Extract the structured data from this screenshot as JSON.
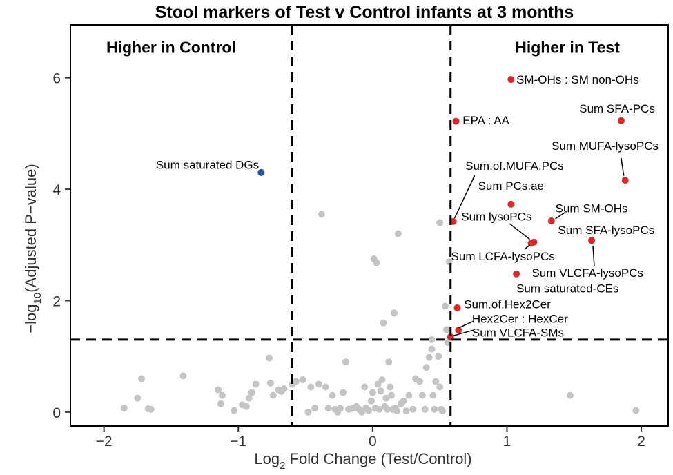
{
  "chart_data": {
    "type": "scatter",
    "title": "Stool markers of Test v Control infants at 3 months",
    "xlabel": {
      "pre": "Log",
      "sub": "2",
      "post": " Fold Change (Test/Control)"
    },
    "ylabel": {
      "pre": "−log",
      "sub": "10",
      "post": "(Adjusted P−value)"
    },
    "xlim": [
      -2.25,
      2.2
    ],
    "ylim": [
      -0.25,
      6.95
    ],
    "xticks": [
      -2,
      -1,
      0,
      1,
      2
    ],
    "xtick_labels": [
      "−2",
      "−1",
      "0",
      "1",
      "2"
    ],
    "yticks": [
      0,
      2,
      4,
      6
    ],
    "ytick_labels": [
      "0",
      "2",
      "4",
      "6"
    ],
    "grid": false,
    "thresholds": {
      "x": [
        -0.6,
        0.58
      ],
      "y": 1.3
    },
    "region_labels": [
      {
        "text": "Higher in Control",
        "x": -1.5,
        "y": 6.55
      },
      {
        "text": "Higher in Test",
        "x": 1.45,
        "y": 6.55
      }
    ],
    "colors": {
      "ns": "#c4c4c4",
      "up": "#e0282c",
      "down": "#2c4fa3",
      "axis": "#000000"
    },
    "series": [
      {
        "group": "up",
        "points": [
          {
            "x": 1.03,
            "y": 5.97,
            "label": "SM-OHs : SM non-OHs",
            "lx": 1.07,
            "ly": 5.97,
            "anchor": "start"
          },
          {
            "x": 1.85,
            "y": 5.23,
            "label": "Sum SFA-PCs",
            "lx": 1.82,
            "ly": 5.45,
            "anchor": "middle"
          },
          {
            "x": 0.62,
            "y": 5.22,
            "label": "EPA : AA",
            "lx": 0.67,
            "ly": 5.24,
            "anchor": "start"
          },
          {
            "x": 1.88,
            "y": 4.16,
            "label": "Sum MUFA-lysoPCs",
            "lx": 1.73,
            "ly": 4.78,
            "anchor": "middle",
            "lead": [
              1.85,
              4.56,
              1.87,
              4.24
            ]
          },
          {
            "x": 1.03,
            "y": 3.73,
            "label": "Sum PCs.ae",
            "lx": 1.03,
            "ly": 4.06,
            "anchor": "middle"
          },
          {
            "x": 1.33,
            "y": 3.43,
            "label": "Sum SM-OHs",
            "lx": 1.63,
            "ly": 3.66,
            "anchor": "middle",
            "lead": [
              1.43,
              3.58,
              1.36,
              3.47
            ]
          },
          {
            "x": 0.6,
            "y": 3.42,
            "label": "Sum.of.MUFA.PCs",
            "lx": 0.69,
            "ly": 4.42,
            "anchor": "start",
            "lead": [
              0.76,
              4.25,
              0.61,
              3.48
            ]
          },
          {
            "x": 1.2,
            "y": 3.05,
            "label": "Sum lysoPCs",
            "lx": 0.66,
            "ly": 3.51,
            "anchor": "start",
            "lead": [
              1.02,
              3.38,
              1.17,
              3.1
            ]
          },
          {
            "x": 1.18,
            "y": 3.03,
            "label": "Sum LCFA-lysoPCs",
            "lx": 0.97,
            "ly": 2.8,
            "anchor": "middle",
            "lead": [
              1.13,
              2.92,
              1.17,
              3.0
            ]
          },
          {
            "x": 1.63,
            "y": 3.08,
            "label": "Sum VLCFA-lysoPCs",
            "lx": 1.6,
            "ly": 2.5,
            "anchor": "middle",
            "lead": [
              1.64,
              2.98,
              1.65,
              2.62
            ]
          },
          {
            "x": 1.07,
            "y": 2.48,
            "label": "Sum saturated-CEs",
            "lx": 1.07,
            "ly": 2.22,
            "anchor": "start"
          },
          {
            "x": 0.63,
            "y": 1.87,
            "label": "Sum.of.Hex2Cer",
            "lx": 0.68,
            "ly": 1.94,
            "anchor": "start"
          },
          {
            "x": 0.64,
            "y": 1.47,
            "label": "Hex2Cer : HexCer",
            "lx": 0.74,
            "ly": 1.68,
            "anchor": "start",
            "lead": [
              0.75,
              1.63,
              0.64,
              1.51
            ]
          },
          {
            "x": 0.58,
            "y": 1.35,
            "label": "Sum VLCFA-SMs",
            "lx": 0.74,
            "ly": 1.43,
            "anchor": "start",
            "lead": [
              0.75,
              1.47,
              0.6,
              1.37
            ]
          }
        ],
        "extra_labels": [
          {
            "label": "Sum SFA-lysoPCs",
            "lx": 1.38,
            "ly": 3.27,
            "anchor": "start"
          }
        ]
      },
      {
        "group": "down",
        "points": [
          {
            "x": -0.83,
            "y": 4.3,
            "label": "Sum saturated DGs",
            "lx": -1.23,
            "ly": 4.44,
            "anchor": "middle"
          }
        ]
      },
      {
        "group": "ns",
        "points": [
          {
            "x": -1.85,
            "y": 0.07
          },
          {
            "x": -1.75,
            "y": 0.25
          },
          {
            "x": -1.72,
            "y": 0.6
          },
          {
            "x": -1.67,
            "y": 0.06
          },
          {
            "x": -1.65,
            "y": 0.05
          },
          {
            "x": -1.41,
            "y": 0.65
          },
          {
            "x": -1.15,
            "y": 0.4
          },
          {
            "x": -1.12,
            "y": 0.3
          },
          {
            "x": -1.13,
            "y": 0.15
          },
          {
            "x": -1.03,
            "y": 0.03
          },
          {
            "x": -0.97,
            "y": 0.13
          },
          {
            "x": -0.94,
            "y": 0.1
          },
          {
            "x": -0.92,
            "y": 0.25
          },
          {
            "x": -0.9,
            "y": 0.35
          },
          {
            "x": -0.87,
            "y": 0.5
          },
          {
            "x": -0.77,
            "y": 0.97
          },
          {
            "x": -0.76,
            "y": 0.52
          },
          {
            "x": -0.74,
            "y": 0.3
          },
          {
            "x": -0.7,
            "y": 0.4
          },
          {
            "x": -0.68,
            "y": 0.37
          },
          {
            "x": -0.66,
            "y": 0.42
          },
          {
            "x": -0.6,
            "y": 0.5
          },
          {
            "x": -0.57,
            "y": 0.55
          },
          {
            "x": -0.52,
            "y": 0.58
          },
          {
            "x": -0.48,
            "y": 0.0
          },
          {
            "x": -0.46,
            "y": 0.45
          },
          {
            "x": -0.43,
            "y": 0.07
          },
          {
            "x": -0.4,
            "y": 0.5
          },
          {
            "x": -0.38,
            "y": 3.55
          },
          {
            "x": -0.35,
            "y": 0.45
          },
          {
            "x": -0.33,
            "y": 0.07
          },
          {
            "x": -0.3,
            "y": 0.3
          },
          {
            "x": -0.28,
            "y": 0.05
          },
          {
            "x": -0.26,
            "y": 0.0
          },
          {
            "x": -0.24,
            "y": 0.07
          },
          {
            "x": -0.22,
            "y": 0.35
          },
          {
            "x": -0.2,
            "y": 0.9
          },
          {
            "x": -0.18,
            "y": 0.05
          },
          {
            "x": -0.16,
            "y": 0.06
          },
          {
            "x": -0.14,
            "y": 0.07
          },
          {
            "x": -0.12,
            "y": 0.1
          },
          {
            "x": -0.1,
            "y": 0.05
          },
          {
            "x": -0.08,
            "y": 0.0
          },
          {
            "x": -0.06,
            "y": 0.45
          },
          {
            "x": -0.05,
            "y": 0.07
          },
          {
            "x": -0.03,
            "y": 0.03
          },
          {
            "x": -0.01,
            "y": 0.2
          },
          {
            "x": 0.0,
            "y": 0.35
          },
          {
            "x": 0.01,
            "y": 2.75
          },
          {
            "x": 0.03,
            "y": 2.68
          },
          {
            "x": 0.02,
            "y": 0.07
          },
          {
            "x": 0.04,
            "y": 0.5
          },
          {
            "x": 0.05,
            "y": 0.05
          },
          {
            "x": 0.06,
            "y": 0.38
          },
          {
            "x": 0.07,
            "y": 0.58
          },
          {
            "x": 0.08,
            "y": 1.6
          },
          {
            "x": 0.09,
            "y": 0.1
          },
          {
            "x": 0.1,
            "y": 0.25
          },
          {
            "x": 0.11,
            "y": 0.05
          },
          {
            "x": 0.12,
            "y": 0.9
          },
          {
            "x": 0.13,
            "y": 0.45
          },
          {
            "x": 0.14,
            "y": 0.3
          },
          {
            "x": 0.15,
            "y": 0.05
          },
          {
            "x": 0.16,
            "y": 1.78
          },
          {
            "x": 0.17,
            "y": 0.07
          },
          {
            "x": 0.18,
            "y": 0.02
          },
          {
            "x": 0.19,
            "y": 3.2
          },
          {
            "x": 0.21,
            "y": 0.15
          },
          {
            "x": 0.23,
            "y": 0.2
          },
          {
            "x": 0.25,
            "y": 0.02
          },
          {
            "x": 0.27,
            "y": 0.3
          },
          {
            "x": 0.3,
            "y": 0.05
          },
          {
            "x": 0.32,
            "y": 0.6
          },
          {
            "x": 0.35,
            "y": 0.55
          },
          {
            "x": 0.37,
            "y": 0.3
          },
          {
            "x": 0.39,
            "y": 0.05
          },
          {
            "x": 0.4,
            "y": 0.8
          },
          {
            "x": 0.42,
            "y": 0.98
          },
          {
            "x": 0.44,
            "y": 1.13
          },
          {
            "x": 0.45,
            "y": 0.3
          },
          {
            "x": 0.46,
            "y": 0.05
          },
          {
            "x": 0.47,
            "y": 0.55
          },
          {
            "x": 0.49,
            "y": 1.0
          },
          {
            "x": 0.5,
            "y": 0.45
          },
          {
            "x": 0.51,
            "y": 0.05
          },
          {
            "x": 0.52,
            "y": 0.02
          },
          {
            "x": 0.54,
            "y": 1.9
          },
          {
            "x": 0.55,
            "y": 1.48
          },
          {
            "x": 0.5,
            "y": 3.4
          },
          {
            "x": 0.56,
            "y": 1.25
          },
          {
            "x": 0.57,
            "y": 2.7
          },
          {
            "x": 0.44,
            "y": 1.3
          },
          {
            "x": 1.47,
            "y": 0.3
          },
          {
            "x": 1.96,
            "y": 0.03
          }
        ]
      }
    ]
  }
}
